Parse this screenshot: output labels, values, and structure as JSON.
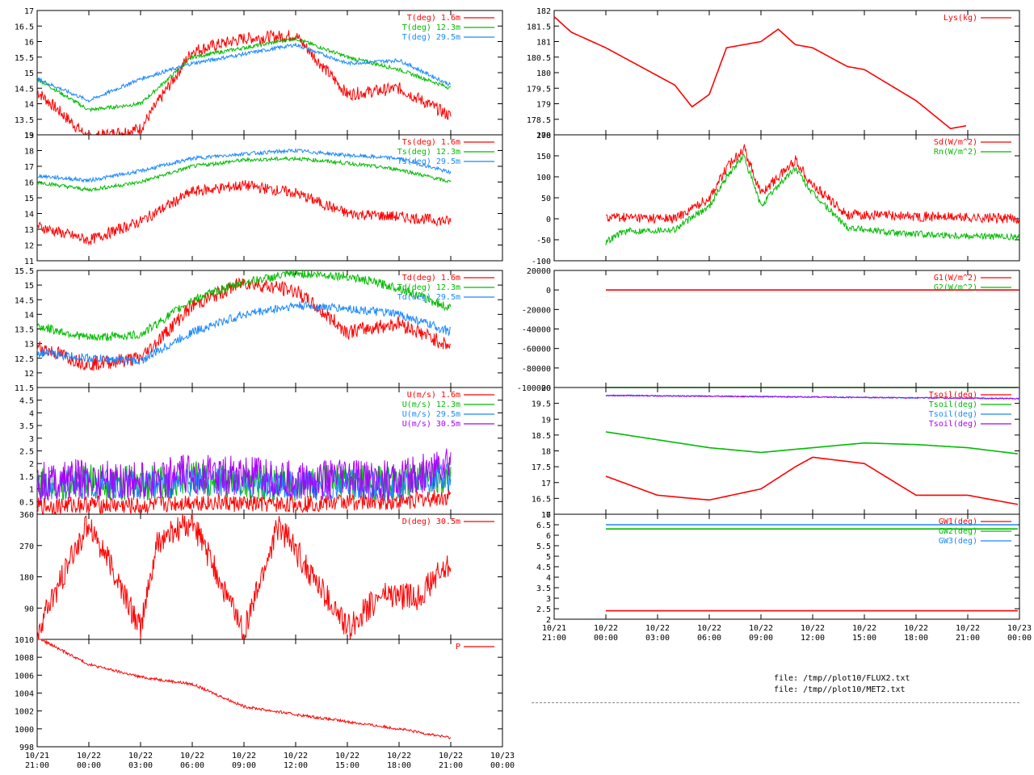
{
  "colors": {
    "red": "#ff0000",
    "green": "#00bb00",
    "blue": "#1a88ff",
    "magenta": "#aa00ff"
  },
  "files": [
    "file: /tmp//plot10/FLUX2.txt",
    "file: /tmp//plot10/MET2.txt"
  ],
  "chart_data": [
    {
      "type": "line",
      "ylim": [
        13,
        17
      ],
      "yticks": [
        13,
        13.5,
        14,
        14.5,
        15,
        15.5,
        16,
        16.5,
        17
      ],
      "ytick_labels": [
        "13",
        "13.5",
        "14",
        "14.5",
        "15",
        "15.5",
        "16",
        "16.5",
        "17"
      ],
      "x_range": [
        "10/21 21:00",
        "10/23 00:00"
      ],
      "series": [
        {
          "name": "T(deg)  1.6m",
          "color": "#ff0000",
          "x": [
            0,
            3,
            6,
            9,
            12,
            15,
            18,
            21,
            24
          ],
          "y": [
            14.4,
            12.9,
            13.2,
            15.7,
            16.1,
            16.2,
            14.3,
            14.5,
            13.6
          ],
          "noise": 0.2
        },
        {
          "name": "T(deg) 12.3m",
          "color": "#00bb00",
          "x": [
            0,
            3,
            6,
            9,
            12,
            15,
            18,
            21,
            24
          ],
          "y": [
            14.8,
            13.8,
            14.0,
            15.5,
            15.8,
            16.1,
            15.5,
            15.1,
            14.5
          ],
          "noise": 0.06
        },
        {
          "name": "T(deg) 29.5m",
          "color": "#1a88ff",
          "x": [
            0,
            3,
            6,
            9,
            12,
            15,
            18,
            21,
            24
          ],
          "y": [
            14.8,
            14.1,
            14.8,
            15.3,
            15.6,
            15.9,
            15.3,
            15.4,
            14.6
          ],
          "noise": 0.06
        }
      ]
    },
    {
      "type": "line",
      "ylim": [
        11,
        19
      ],
      "yticks": [
        11,
        12,
        13,
        14,
        15,
        16,
        17,
        18,
        19
      ],
      "ytick_labels": [
        "11",
        "12",
        "13",
        "14",
        "15",
        "16",
        "17",
        "18",
        "19"
      ],
      "x_range": [
        "10/21 21:00",
        "10/23 00:00"
      ],
      "series": [
        {
          "name": "Ts(deg)  1.6m",
          "color": "#ff0000",
          "x": [
            0,
            3,
            6,
            9,
            12,
            15,
            18,
            21,
            24
          ],
          "y": [
            13.2,
            12.3,
            13.5,
            15.4,
            15.8,
            15.3,
            14.0,
            13.8,
            13.5
          ],
          "noise": 0.35
        },
        {
          "name": "Ts(deg) 12.3m",
          "color": "#00bb00",
          "x": [
            0,
            3,
            6,
            9,
            12,
            15,
            18,
            21,
            24
          ],
          "y": [
            16.0,
            15.5,
            16.0,
            17.0,
            17.4,
            17.5,
            17.2,
            16.8,
            16.0
          ],
          "noise": 0.12
        },
        {
          "name": "Ts(deg) 29.5m",
          "color": "#1a88ff",
          "x": [
            0,
            3,
            6,
            9,
            12,
            15,
            18,
            21,
            24
          ],
          "y": [
            16.4,
            16.1,
            16.7,
            17.5,
            17.8,
            18.0,
            17.7,
            17.5,
            16.6
          ],
          "noise": 0.12
        }
      ]
    },
    {
      "type": "line",
      "ylim": [
        11.5,
        15.5
      ],
      "yticks": [
        11.5,
        12,
        12.5,
        13,
        13.5,
        14,
        14.5,
        15,
        15.5
      ],
      "ytick_labels": [
        "11.5",
        "12",
        "12.5",
        "13",
        "13.5",
        "14",
        "14.5",
        "15",
        "15.5"
      ],
      "x_range": [
        "10/21 21:00",
        "10/23 00:00"
      ],
      "series": [
        {
          "name": "Td(deg)  1.6m",
          "color": "#ff0000",
          "x": [
            0,
            3,
            6,
            9,
            12,
            15,
            18,
            21,
            24
          ],
          "y": [
            12.9,
            12.3,
            12.5,
            14.3,
            15.1,
            14.8,
            13.4,
            13.7,
            12.9
          ],
          "noise": 0.25
        },
        {
          "name": "Td(deg) 12.3m",
          "color": "#00bb00",
          "x": [
            0,
            3,
            6,
            9,
            12,
            15,
            18,
            21,
            24
          ],
          "y": [
            13.6,
            13.2,
            13.3,
            14.5,
            15.1,
            15.4,
            15.3,
            14.9,
            14.2
          ],
          "noise": 0.15
        },
        {
          "name": "Td(deg) 29.5m",
          "color": "#1a88ff",
          "x": [
            0,
            3,
            6,
            9,
            12,
            15,
            18,
            21,
            24
          ],
          "y": [
            12.7,
            12.5,
            12.4,
            13.4,
            14.0,
            14.3,
            14.2,
            14.0,
            13.4
          ],
          "noise": 0.15
        }
      ]
    },
    {
      "type": "line",
      "ylim": [
        0,
        5
      ],
      "yticks": [
        0.5,
        1,
        1.5,
        2,
        2.5,
        3,
        3.5,
        4,
        4.5
      ],
      "ytick_labels": [
        "0.5",
        "1",
        "1.5",
        "2",
        "2.5",
        "3",
        "3.5",
        "4",
        "4.5"
      ],
      "x_range": [
        "10/21 21:00",
        "10/23 00:00"
      ],
      "series": [
        {
          "name": "U(m/s)  1.6m",
          "color": "#ff0000",
          "x": [
            0,
            3,
            6,
            9,
            12,
            15,
            18,
            21,
            24
          ],
          "y": [
            0.3,
            0.4,
            0.3,
            0.5,
            0.4,
            0.4,
            0.5,
            0.5,
            0.7
          ],
          "noise": 0.35
        },
        {
          "name": "U(m/s) 12.3m",
          "color": "#00bb00",
          "x": [
            0,
            3,
            6,
            9,
            12,
            15,
            18,
            21,
            24
          ],
          "y": [
            1.2,
            1.3,
            1.2,
            1.4,
            1.3,
            1.2,
            1.3,
            1.2,
            1.6
          ],
          "noise": 0.7
        },
        {
          "name": "U(m/s) 29.5m",
          "color": "#1a88ff",
          "x": [
            0,
            3,
            6,
            9,
            12,
            15,
            18,
            21,
            24
          ],
          "y": [
            1.1,
            1.2,
            1.1,
            1.3,
            1.2,
            1.1,
            1.2,
            1.1,
            1.5
          ],
          "noise": 0.6
        },
        {
          "name": "U(m/s) 30.5m",
          "color": "#aa00ff",
          "x": [
            0,
            3,
            6,
            9,
            12,
            15,
            18,
            21,
            24
          ],
          "y": [
            1.3,
            1.4,
            1.3,
            1.6,
            1.5,
            1.3,
            1.4,
            1.3,
            2.0
          ],
          "noise": 0.8
        }
      ]
    },
    {
      "type": "line",
      "ylim": [
        0,
        360
      ],
      "yticks": [
        90,
        180,
        270,
        360
      ],
      "ytick_labels": [
        "90",
        "180",
        "270",
        "360"
      ],
      "x_range": [
        "10/21 21:00",
        "10/23 00:00"
      ],
      "series": [
        {
          "name": "D(deg)  30.5m",
          "color": "#ff0000",
          "x": [
            0,
            3,
            6,
            7,
            9,
            12,
            14,
            18,
            20,
            22,
            24
          ],
          "y": [
            20,
            340,
            30,
            280,
            340,
            20,
            330,
            30,
            130,
            120,
            220
          ],
          "noise": 40
        }
      ]
    },
    {
      "type": "line",
      "ylim": [
        998,
        1010
      ],
      "yticks": [
        998,
        1000,
        1002,
        1004,
        1006,
        1008,
        1010
      ],
      "ytick_labels": [
        "998",
        "1000",
        "1002",
        "1004",
        "1006",
        "1008",
        "1010"
      ],
      "x_range": [
        "10/21 21:00",
        "10/23 00:00"
      ],
      "series": [
        {
          "name": "P",
          "color": "#ff0000",
          "x": [
            0,
            3,
            6,
            9,
            12,
            15,
            18,
            21,
            24
          ],
          "y": [
            1010.2,
            1007.2,
            1005.8,
            1005.0,
            1002.5,
            1001.6,
            1000.8,
            1000.0,
            999.0
          ],
          "noise": 0.15
        }
      ]
    },
    {
      "type": "line",
      "ylim": [
        178,
        182
      ],
      "yticks": [
        178,
        178.5,
        179,
        179.5,
        180,
        180.5,
        181,
        181.5,
        182
      ],
      "ytick_labels": [
        "178",
        "178.5",
        "179",
        "179.5",
        "180",
        "180.5",
        "181",
        "181.5",
        "182"
      ],
      "x_range": [
        "10/21 21:00",
        "10/23 00:00"
      ],
      "series": [
        {
          "name": "Lys(kg)",
          "color": "#ff0000",
          "x": [
            0,
            1,
            3,
            5,
            7,
            8,
            9,
            10,
            12,
            13,
            14,
            15,
            17,
            18,
            21,
            23,
            24
          ],
          "y": [
            181.8,
            181.3,
            180.8,
            180.2,
            179.6,
            178.9,
            179.3,
            180.8,
            181.0,
            181.4,
            180.9,
            180.8,
            180.2,
            180.1,
            179.1,
            178.2,
            178.3
          ],
          "noise": 0
        }
      ]
    },
    {
      "type": "line",
      "ylim": [
        -100,
        200
      ],
      "yticks": [
        -100,
        -50,
        0,
        50,
        100,
        150,
        200
      ],
      "ytick_labels": [
        "-100",
        "-50",
        "0",
        "50",
        "100",
        "150",
        "200"
      ],
      "x_range": [
        "10/21 21:00",
        "10/23 00:00"
      ],
      "series": [
        {
          "name": "Sd(W/m^2)",
          "color": "#ff0000",
          "x": [
            3,
            7,
            9,
            10,
            11,
            12,
            13,
            14,
            15,
            17,
            27
          ],
          "y": [
            5,
            0,
            50,
            120,
            170,
            60,
            100,
            140,
            80,
            10,
            0
          ],
          "noise": 12
        },
        {
          "name": "Rn(W/m^2)",
          "color": "#00bb00",
          "x": [
            3,
            4,
            7,
            9,
            10,
            11,
            12,
            13,
            14,
            15,
            17,
            20,
            24,
            27
          ],
          "y": [
            -55,
            -30,
            -25,
            30,
            100,
            150,
            30,
            80,
            120,
            60,
            -20,
            -35,
            -40,
            -45
          ],
          "noise": 8
        }
      ]
    },
    {
      "type": "line",
      "ylim": [
        -100000,
        20000
      ],
      "yticks": [
        -100000,
        -80000,
        -60000,
        -40000,
        -20000,
        0,
        20000
      ],
      "ytick_labels": [
        "-100000",
        "-80000",
        "-60000",
        "-40000",
        "-20000",
        "0",
        "20000"
      ],
      "x_range": [
        "10/21 21:00",
        "10/23 00:00"
      ],
      "series": [
        {
          "name": "G1(W/m^2)",
          "color": "#ff0000",
          "x": [
            3,
            27
          ],
          "y": [
            0,
            0
          ],
          "noise": 0
        },
        {
          "name": "G2(W/m^2)",
          "color": "#00bb00",
          "x": [
            3,
            27
          ],
          "y": [
            -100000,
            -100000
          ],
          "noise": 0
        }
      ]
    },
    {
      "type": "line",
      "ylim": [
        16,
        20
      ],
      "yticks": [
        16,
        16.5,
        17,
        17.5,
        18,
        18.5,
        19,
        19.5,
        20
      ],
      "ytick_labels": [
        "16",
        "16.5",
        "17",
        "17.5",
        "18",
        "18.5",
        "19",
        "19.5",
        "20"
      ],
      "x_range": [
        "10/21 21:00",
        "10/23 00:00"
      ],
      "series": [
        {
          "name": "Tsoil(deg)",
          "color": "#ff0000",
          "x": [
            3,
            6,
            9,
            12,
            14,
            15,
            18,
            21,
            24,
            27
          ],
          "y": [
            17.2,
            16.6,
            16.45,
            16.8,
            17.5,
            17.8,
            17.6,
            16.6,
            16.6,
            16.3
          ],
          "noise": 0
        },
        {
          "name": "Tsoil(deg)",
          "color": "#00bb00",
          "x": [
            3,
            6,
            9,
            12,
            15,
            18,
            21,
            24,
            27
          ],
          "y": [
            18.6,
            18.35,
            18.1,
            17.95,
            18.1,
            18.25,
            18.2,
            18.1,
            17.9
          ],
          "noise": 0
        },
        {
          "name": "Tsoil(deg)",
          "color": "#1a88ff",
          "x": [
            3,
            27
          ],
          "y": [
            19.75,
            19.65
          ],
          "noise": 0.02
        },
        {
          "name": "Tsoil(deg)",
          "color": "#aa00ff",
          "x": [
            3,
            27
          ],
          "y": [
            19.75,
            19.65
          ],
          "noise": 0.02
        }
      ]
    },
    {
      "type": "line",
      "ylim": [
        2,
        7
      ],
      "yticks": [
        2,
        2.5,
        3,
        3.5,
        4,
        4.5,
        5,
        5.5,
        6,
        6.5,
        7
      ],
      "ytick_labels": [
        "2",
        "2.5",
        "3",
        "3.5",
        "4",
        "4.5",
        "5",
        "5.5",
        "6",
        "6.5",
        "7"
      ],
      "x_range": [
        "10/21 21:00",
        "10/23 00:00"
      ],
      "series": [
        {
          "name": "GW1(deg)",
          "color": "#ff0000",
          "x": [
            3,
            27
          ],
          "y": [
            2.4,
            2.4
          ],
          "noise": 0
        },
        {
          "name": "GW2(deg)",
          "color": "#00bb00",
          "x": [
            3,
            27
          ],
          "y": [
            6.3,
            6.3
          ],
          "noise": 0
        },
        {
          "name": "GW3(deg)",
          "color": "#1a88ff",
          "x": [
            3,
            27
          ],
          "y": [
            6.5,
            6.5
          ],
          "noise": 0
        }
      ]
    }
  ],
  "x_tick_labels": [
    [
      "10/21",
      "21:00"
    ],
    [
      "10/22",
      "00:00"
    ],
    [
      "10/22",
      "03:00"
    ],
    [
      "10/22",
      "06:00"
    ],
    [
      "10/22",
      "09:00"
    ],
    [
      "10/22",
      "12:00"
    ],
    [
      "10/22",
      "15:00"
    ],
    [
      "10/22",
      "18:00"
    ],
    [
      "10/22",
      "21:00"
    ],
    [
      "10/23",
      "00:00"
    ]
  ]
}
